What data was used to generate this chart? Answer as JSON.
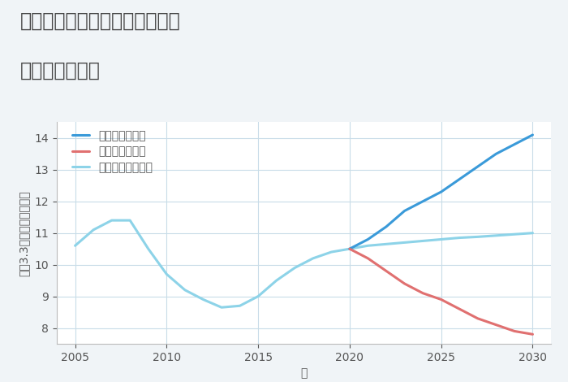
{
  "title_line1": "福岡県久留米市北野町千代島の",
  "title_line2": "土地の価格推移",
  "xlabel": "年",
  "ylabel": "平（3.3㎡）単価（万円）",
  "ylim": [
    7.5,
    14.5
  ],
  "xlim": [
    2004,
    2031
  ],
  "yticks": [
    8,
    9,
    10,
    11,
    12,
    13,
    14
  ],
  "xticks": [
    2005,
    2010,
    2015,
    2020,
    2025,
    2030
  ],
  "normal_x": [
    2005,
    2006,
    2007,
    2008,
    2009,
    2010,
    2011,
    2012,
    2013,
    2014,
    2015,
    2016,
    2017,
    2018,
    2019,
    2020,
    2021,
    2022,
    2023,
    2024,
    2025,
    2026,
    2027,
    2028,
    2029,
    2030
  ],
  "normal_y": [
    10.6,
    11.1,
    11.4,
    11.4,
    10.5,
    9.7,
    9.2,
    8.9,
    8.65,
    8.7,
    9.0,
    9.5,
    9.9,
    10.2,
    10.4,
    10.5,
    10.6,
    10.65,
    10.7,
    10.75,
    10.8,
    10.85,
    10.88,
    10.92,
    10.96,
    11.0
  ],
  "good_x": [
    2020,
    2021,
    2022,
    2023,
    2024,
    2025,
    2026,
    2027,
    2028,
    2029,
    2030
  ],
  "good_y": [
    10.5,
    10.8,
    11.2,
    11.7,
    12.0,
    12.3,
    12.7,
    13.1,
    13.5,
    13.8,
    14.1
  ],
  "bad_x": [
    2020,
    2021,
    2022,
    2023,
    2024,
    2025,
    2026,
    2027,
    2028,
    2029,
    2030
  ],
  "bad_y": [
    10.5,
    10.2,
    9.8,
    9.4,
    9.1,
    8.9,
    8.6,
    8.3,
    8.1,
    7.9,
    7.8
  ],
  "color_normal": "#8dd3e8",
  "color_good": "#3a9ad9",
  "color_bad": "#e07070",
  "legend_good": "グッドシナリオ",
  "legend_bad": "バッドシナリオ",
  "legend_normal": "ノーマルシナリオ",
  "title_fontsize": 17,
  "label_fontsize": 10,
  "tick_fontsize": 10,
  "legend_fontsize": 10,
  "background_color": "#f0f4f7",
  "plot_bg_color": "#ffffff",
  "grid_color": "#c8dce8",
  "line_width": 2.2
}
